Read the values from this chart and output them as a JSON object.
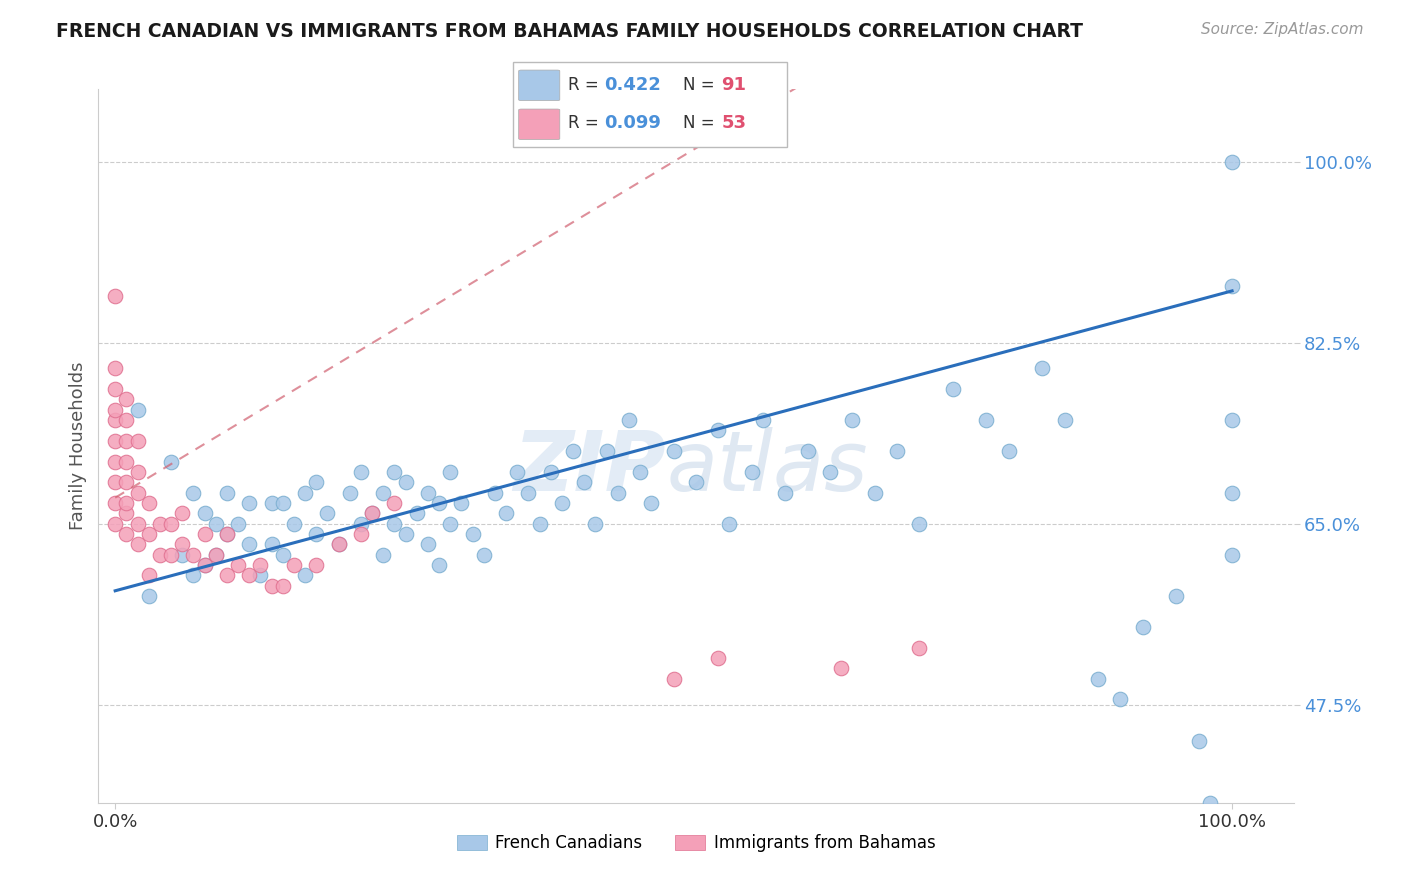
{
  "title": "FRENCH CANADIAN VS IMMIGRANTS FROM BAHAMAS FAMILY HOUSEHOLDS CORRELATION CHART",
  "source": "Source: ZipAtlas.com",
  "ylabel": "Family Households",
  "r_blue": 0.422,
  "n_blue": 91,
  "r_pink": 0.099,
  "n_pink": 53,
  "blue_color": "#a8c8e8",
  "blue_edge_color": "#7aaed0",
  "blue_line_color": "#2a6ebb",
  "pink_color": "#f4a0b8",
  "pink_edge_color": "#e07090",
  "pink_line_color": "#d06070",
  "yticks": [
    0.475,
    0.65,
    0.825,
    1.0
  ],
  "ytick_labels": [
    "47.5%",
    "65.0%",
    "82.5%",
    "100.0%"
  ],
  "xtick_labels": [
    "0.0%",
    "100.0%"
  ],
  "tick_color": "#4a90d9",
  "legend_items": [
    {
      "label": "R = ",
      "value": "0.422",
      "n_label": "N = ",
      "n_value": "91"
    },
    {
      "label": "R = ",
      "value": "0.099",
      "n_label": "N = ",
      "n_value": "53"
    }
  ]
}
